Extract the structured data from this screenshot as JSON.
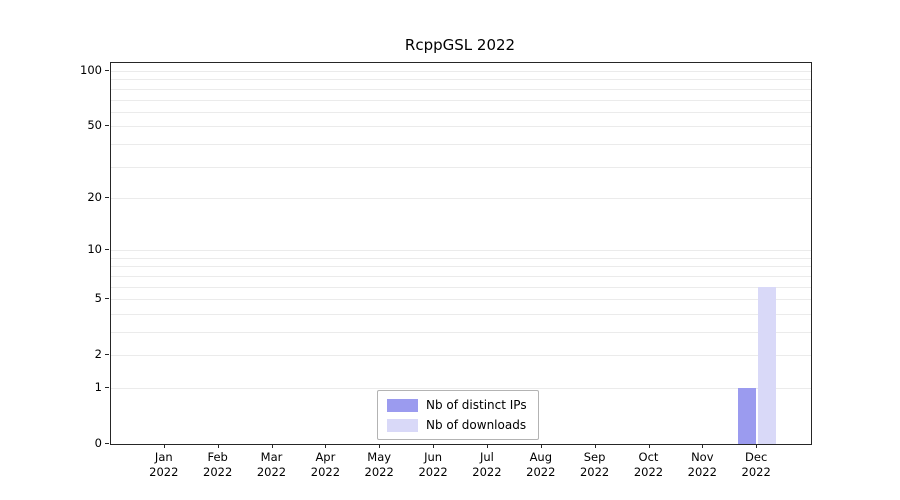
{
  "chart_data": {
    "type": "bar",
    "title": "RcppGSL 2022",
    "scale": "log1p",
    "grid": "horizontal-minor",
    "legend_position": "bottom-center",
    "months": [
      "Jan",
      "Feb",
      "Mar",
      "Apr",
      "May",
      "Jun",
      "Jul",
      "Aug",
      "Sep",
      "Oct",
      "Nov",
      "Dec"
    ],
    "year": "2022",
    "yticks": [
      0,
      1,
      2,
      5,
      10,
      20,
      50,
      100
    ],
    "gridline_values": [
      1,
      2,
      3,
      4,
      5,
      6,
      7,
      8,
      9,
      10,
      20,
      30,
      40,
      50,
      60,
      70,
      80,
      90,
      100
    ],
    "ylim": [
      0,
      100
    ],
    "series": [
      {
        "name": "Nb of distinct IPs",
        "color": "#9b9bef",
        "values": [
          0,
          0,
          0,
          0,
          0,
          0,
          0,
          0,
          0,
          0,
          0,
          1
        ]
      },
      {
        "name": "Nb of downloads",
        "color": "#d9d9f8",
        "values": [
          0,
          0,
          0,
          0,
          0,
          0,
          0,
          0,
          0,
          0,
          0,
          6
        ]
      }
    ]
  }
}
